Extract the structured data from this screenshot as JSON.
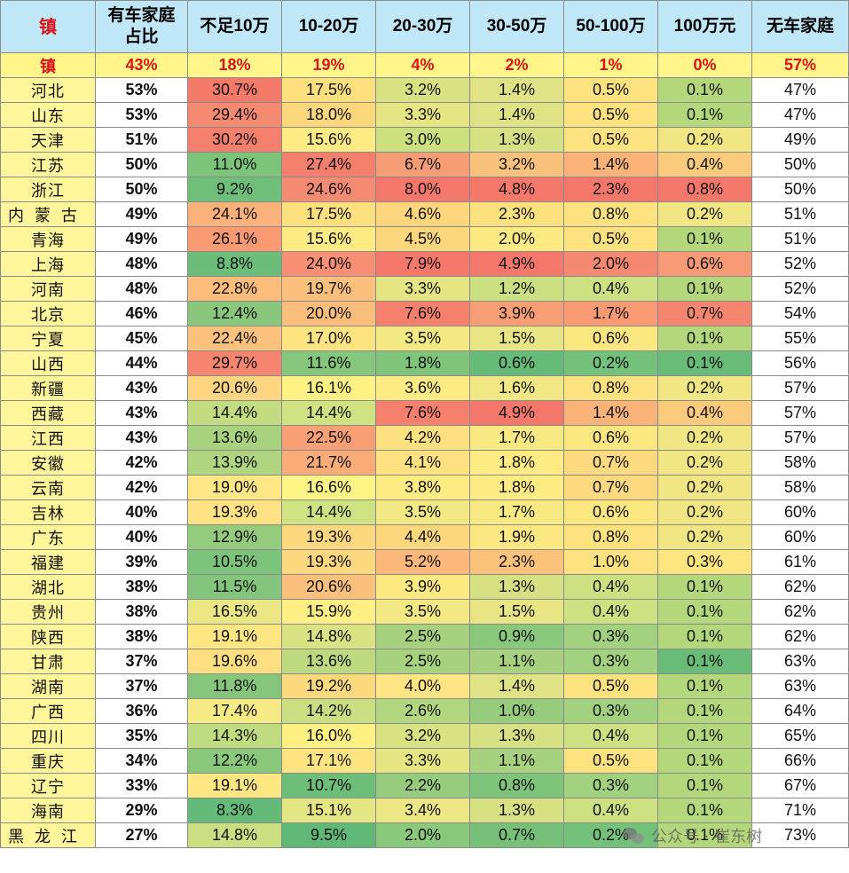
{
  "header": {
    "corner": "镇",
    "own_share": "有车家庭\n占比",
    "cols": [
      "不足10万",
      "10-20万",
      "20-30万",
      "30-50万",
      "50-100万",
      "100万元"
    ],
    "no_car": "无车家庭"
  },
  "summary": {
    "name": "镇",
    "own": "43%",
    "vals": [
      "18%",
      "19%",
      "4%",
      "2%",
      "1%",
      "0%"
    ],
    "no_car": "57%"
  },
  "rows": [
    {
      "prov": "河北",
      "own": "53%",
      "vals": [
        "30.7%",
        "17.5%",
        "3.2%",
        "1.4%",
        "0.5%",
        "0.1%"
      ],
      "colors": [
        "#f47a6a",
        "#fde07e",
        "#d9e283",
        "#dfe385",
        "#fde37f",
        "#b5d77b"
      ],
      "no": "47%"
    },
    {
      "prov": "山东",
      "own": "53%",
      "vals": [
        "29.4%",
        "18.0%",
        "3.3%",
        "1.4%",
        "0.5%",
        "0.1%"
      ],
      "colors": [
        "#f58a72",
        "#fcd77c",
        "#e6e584",
        "#dfe385",
        "#fde37f",
        "#b5d77b"
      ],
      "no": "47%"
    },
    {
      "prov": "天津",
      "own": "51%",
      "vals": [
        "30.2%",
        "15.6%",
        "3.0%",
        "1.3%",
        "0.5%",
        "0.2%"
      ],
      "colors": [
        "#f47f6c",
        "#ffeb84",
        "#cde080",
        "#d6e183",
        "#fde37f",
        "#f0e784"
      ],
      "no": "49%"
    },
    {
      "prov": "江苏",
      "own": "50%",
      "vals": [
        "11.0%",
        "27.4%",
        "6.7%",
        "3.2%",
        "1.4%",
        "0.4%"
      ],
      "colors": [
        "#7dc47b",
        "#f47f6c",
        "#f59e75",
        "#f9c27c",
        "#f9b278",
        "#fbcb7d"
      ],
      "no": "50%"
    },
    {
      "prov": "浙江",
      "own": "50%",
      "vals": [
        "9.2%",
        "24.6%",
        "8.0%",
        "4.8%",
        "2.3%",
        "0.8%"
      ],
      "colors": [
        "#6fbe7a",
        "#f58b72",
        "#f4776b",
        "#f4796b",
        "#f4776b",
        "#f4776b"
      ],
      "no": "50%"
    },
    {
      "prov": "内蒙古",
      "own": "49%",
      "vals": [
        "24.1%",
        "17.5%",
        "4.6%",
        "2.3%",
        "0.8%",
        "0.2%"
      ],
      "colors": [
        "#fbb27a",
        "#fde07e",
        "#fcd57c",
        "#fde17f",
        "#fde37f",
        "#f0e784"
      ],
      "no": "51%"
    },
    {
      "prov": "青海",
      "own": "49%",
      "vals": [
        "26.1%",
        "15.6%",
        "4.5%",
        "2.0%",
        "0.5%",
        "0.1%"
      ],
      "colors": [
        "#f99a73",
        "#ffeb84",
        "#fcd67c",
        "#feea83",
        "#fde37f",
        "#b5d77b"
      ],
      "no": "51%"
    },
    {
      "prov": "上海",
      "own": "48%",
      "vals": [
        "8.8%",
        "24.0%",
        "7.9%",
        "4.9%",
        "2.0%",
        "0.6%"
      ],
      "colors": [
        "#6cbd7a",
        "#f68f73",
        "#f4796b",
        "#f4776b",
        "#f58870",
        "#f79a75"
      ],
      "no": "52%"
    },
    {
      "prov": "河南",
      "own": "48%",
      "vals": [
        "22.8%",
        "19.7%",
        "3.3%",
        "1.2%",
        "0.4%",
        "0.1%"
      ],
      "colors": [
        "#fcbd7b",
        "#fbc07b",
        "#e6e584",
        "#cbe081",
        "#cde082",
        "#b5d77b"
      ],
      "no": "52%"
    },
    {
      "prov": "北京",
      "own": "46%",
      "vals": [
        "12.4%",
        "20.0%",
        "7.6%",
        "3.9%",
        "1.7%",
        "0.7%"
      ],
      "colors": [
        "#89c87c",
        "#fbbd7b",
        "#f4806d",
        "#f79e74",
        "#f99a73",
        "#f4866f"
      ],
      "no": "54%"
    },
    {
      "prov": "宁夏",
      "own": "45%",
      "vals": [
        "22.4%",
        "17.0%",
        "3.5%",
        "1.5%",
        "0.6%",
        "0.1%"
      ],
      "colors": [
        "#fcc17c",
        "#fee481",
        "#f2e884",
        "#e7e584",
        "#fbe780",
        "#b5d77b"
      ],
      "no": "55%"
    },
    {
      "prov": "山西",
      "own": "44%",
      "vals": [
        "29.7%",
        "11.6%",
        "1.8%",
        "0.6%",
        "0.2%",
        "0.1%"
      ],
      "colors": [
        "#f5856f",
        "#86c67c",
        "#80c47c",
        "#66bb78",
        "#73c17a",
        "#68bc78"
      ],
      "no": "56%"
    },
    {
      "prov": "新疆",
      "own": "43%",
      "vals": [
        "20.6%",
        "16.1%",
        "3.6%",
        "1.6%",
        "0.8%",
        "0.2%"
      ],
      "colors": [
        "#fed581",
        "#fff284",
        "#ffeb84",
        "#f0e884",
        "#fde37f",
        "#f0e784"
      ],
      "no": "57%"
    },
    {
      "prov": "西藏",
      "own": "43%",
      "vals": [
        "14.4%",
        "14.4%",
        "7.6%",
        "4.9%",
        "1.4%",
        "0.4%"
      ],
      "colors": [
        "#c3dc81",
        "#d1e283",
        "#f4806d",
        "#f4776b",
        "#f9b278",
        "#fbcb7d"
      ],
      "no": "57%"
    },
    {
      "prov": "江西",
      "own": "43%",
      "vals": [
        "13.6%",
        "22.5%",
        "4.2%",
        "1.7%",
        "0.6%",
        "0.2%"
      ],
      "colors": [
        "#a9d27f",
        "#f89f76",
        "#fde07f",
        "#f9e983",
        "#fbe780",
        "#f0e784"
      ],
      "no": "57%"
    },
    {
      "prov": "安徽",
      "own": "42%",
      "vals": [
        "13.9%",
        "21.7%",
        "4.1%",
        "1.8%",
        "0.7%",
        "0.2%"
      ],
      "colors": [
        "#b0d47f",
        "#f9ac78",
        "#fee282",
        "#ffeb84",
        "#fdd980",
        "#f0e784"
      ],
      "no": "58%"
    },
    {
      "prov": "云南",
      "own": "42%",
      "vals": [
        "19.0%",
        "16.6%",
        "3.8%",
        "1.8%",
        "0.7%",
        "0.2%"
      ],
      "colors": [
        "#fee784",
        "#fdf486",
        "#fdeb83",
        "#ffeb84",
        "#fdd980",
        "#f0e784"
      ],
      "no": "58%"
    },
    {
      "prov": "吉林",
      "own": "40%",
      "vals": [
        "19.3%",
        "14.4%",
        "3.5%",
        "1.7%",
        "0.6%",
        "0.2%"
      ],
      "colors": [
        "#fee283",
        "#d1e283",
        "#f2e884",
        "#f9e983",
        "#fbe780",
        "#f0e784"
      ],
      "no": "60%"
    },
    {
      "prov": "广东",
      "own": "40%",
      "vals": [
        "12.9%",
        "19.3%",
        "4.4%",
        "1.9%",
        "0.8%",
        "0.2%"
      ],
      "colors": [
        "#94cb7d",
        "#fdd87e",
        "#fdd77d",
        "#fbe882",
        "#fde37f",
        "#f0e784"
      ],
      "no": "60%"
    },
    {
      "prov": "福建",
      "own": "39%",
      "vals": [
        "10.5%",
        "19.3%",
        "5.2%",
        "2.3%",
        "1.0%",
        "0.3%"
      ],
      "colors": [
        "#7cc37b",
        "#fdd87e",
        "#fbb87a",
        "#fbc27b",
        "#fce37f",
        "#fde580"
      ],
      "no": "61%"
    },
    {
      "prov": "湖北",
      "own": "38%",
      "vals": [
        "11.5%",
        "20.6%",
        "3.9%",
        "1.3%",
        "0.4%",
        "0.1%"
      ],
      "colors": [
        "#83c57c",
        "#fbc07b",
        "#fde981",
        "#d6e183",
        "#cde082",
        "#b5d77b"
      ],
      "no": "62%"
    },
    {
      "prov": "贵州",
      "own": "38%",
      "vals": [
        "16.5%",
        "15.9%",
        "3.5%",
        "1.5%",
        "0.4%",
        "0.1%"
      ],
      "colors": [
        "#eae784",
        "#ffef84",
        "#f2e884",
        "#e7e584",
        "#cde082",
        "#b5d77b"
      ],
      "no": "62%"
    },
    {
      "prov": "陕西",
      "own": "38%",
      "vals": [
        "19.1%",
        "14.8%",
        "2.5%",
        "0.9%",
        "0.3%",
        "0.1%"
      ],
      "colors": [
        "#fee683",
        "#d9e383",
        "#a8d17f",
        "#8ac87c",
        "#a2d17f",
        "#b5d77b"
      ],
      "no": "62%"
    },
    {
      "prov": "甘肃",
      "own": "37%",
      "vals": [
        "19.6%",
        "13.6%",
        "2.5%",
        "1.1%",
        "0.3%",
        "0.1%"
      ],
      "colors": [
        "#fee083",
        "#bdda81",
        "#a8d17f",
        "#a8d17f",
        "#a2d17f",
        "#68bc78"
      ],
      "no": "63%"
    },
    {
      "prov": "湖南",
      "own": "37%",
      "vals": [
        "11.8%",
        "19.2%",
        "4.0%",
        "1.4%",
        "0.5%",
        "0.1%"
      ],
      "colors": [
        "#85c67c",
        "#fdd97e",
        "#fee482",
        "#dfe385",
        "#fde37f",
        "#b5d77b"
      ],
      "no": "63%"
    },
    {
      "prov": "广西",
      "own": "36%",
      "vals": [
        "17.4%",
        "14.2%",
        "2.6%",
        "1.0%",
        "0.3%",
        "0.1%"
      ],
      "colors": [
        "#f6ea84",
        "#c9df82",
        "#b2d680",
        "#98cc7d",
        "#a2d17f",
        "#b5d77b"
      ],
      "no": "64%"
    },
    {
      "prov": "四川",
      "own": "35%",
      "vals": [
        "14.3%",
        "16.0%",
        "3.2%",
        "1.3%",
        "0.4%",
        "0.1%"
      ],
      "colors": [
        "#c0dc81",
        "#fff084",
        "#d9e283",
        "#d6e183",
        "#cde082",
        "#b5d77b"
      ],
      "no": "65%"
    },
    {
      "prov": "重庆",
      "own": "34%",
      "vals": [
        "12.2%",
        "17.1%",
        "3.3%",
        "1.1%",
        "0.5%",
        "0.1%"
      ],
      "colors": [
        "#8ac87c",
        "#fee381",
        "#e6e584",
        "#a8d17f",
        "#fde37f",
        "#b5d77b"
      ],
      "no": "66%"
    },
    {
      "prov": "辽宁",
      "own": "33%",
      "vals": [
        "19.1%",
        "10.7%",
        "2.2%",
        "0.8%",
        "0.3%",
        "0.1%"
      ],
      "colors": [
        "#fee683",
        "#6cbe79",
        "#97cb7d",
        "#7ec47b",
        "#a2d17f",
        "#b5d77b"
      ],
      "no": "67%"
    },
    {
      "prov": "海南",
      "own": "29%",
      "vals": [
        "8.3%",
        "15.1%",
        "3.4%",
        "1.3%",
        "0.4%",
        "0.1%"
      ],
      "colors": [
        "#64ba79",
        "#e3e683",
        "#ede685",
        "#d6e183",
        "#cde082",
        "#b5d77b"
      ],
      "no": "71%"
    },
    {
      "prov": "黑龙江",
      "own": "27%",
      "vals": [
        "14.8%",
        "9.5%",
        "2.0%",
        "0.7%",
        "0.2%",
        "0.1%"
      ],
      "colors": [
        "#cbdf82",
        "#60b877",
        "#8ac87c",
        "#76c07a",
        "#73c17a",
        "#b5d77b"
      ],
      "no": "73%"
    }
  ],
  "watermark": "公众号 · 崔东树"
}
